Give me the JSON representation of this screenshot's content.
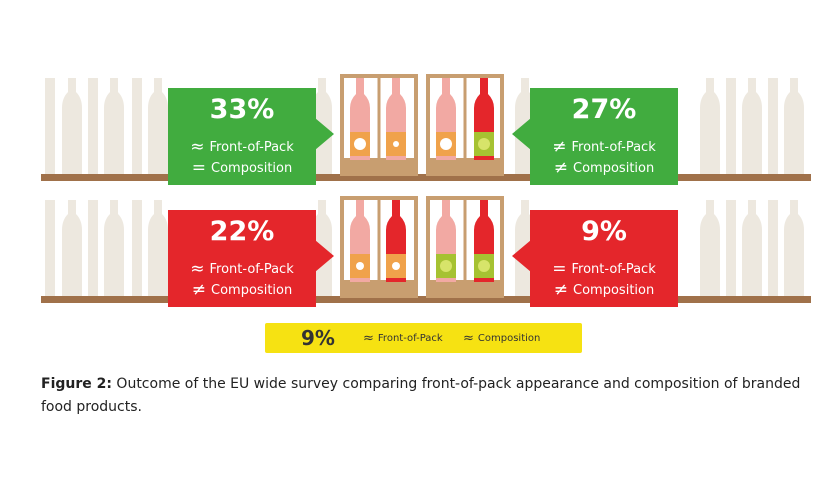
{
  "cards": [
    {
      "id": "top-left",
      "color": "#41ac3f",
      "percent": "33%",
      "line1_symbol": "≈",
      "line1_text": "Front-of-Pack",
      "line2_symbol": "=",
      "line2_text": "Composition"
    },
    {
      "id": "top-right",
      "color": "#41ac3f",
      "percent": "27%",
      "line1_symbol": "≠",
      "line1_text": "Front-of-Pack",
      "line2_symbol": "≠",
      "line2_text": "Composition"
    },
    {
      "id": "bottom-left",
      "color": "#e4262b",
      "percent": "22%",
      "line1_symbol": "≈",
      "line1_text": "Front-of-Pack",
      "line2_symbol": "≠",
      "line2_text": "Composition"
    },
    {
      "id": "bottom-right",
      "color": "#e4262b",
      "percent": "9%",
      "line1_symbol": "=",
      "line1_text": "Front-of-Pack",
      "line2_symbol": "≠",
      "line2_text": "Composition"
    }
  ],
  "yellow_bar": {
    "percent": "9%",
    "item1_symbol": "≈",
    "item1_text": "Front-of-Pack",
    "item2_symbol": "≈",
    "item2_text": "Composition",
    "color": "#f6e212"
  },
  "caption": {
    "label": "Figure 2:",
    "text": "Outcome of the EU wide survey comparing front-of-pack appearance and composition of branded food products."
  },
  "colors": {
    "shelf": "#a0714a",
    "ghost": "#eae4da",
    "crate": "#c89e70",
    "pink": "#f2a9a3",
    "red": "#e4262b",
    "orange": "#f0a24b",
    "green": "#a6c232"
  }
}
